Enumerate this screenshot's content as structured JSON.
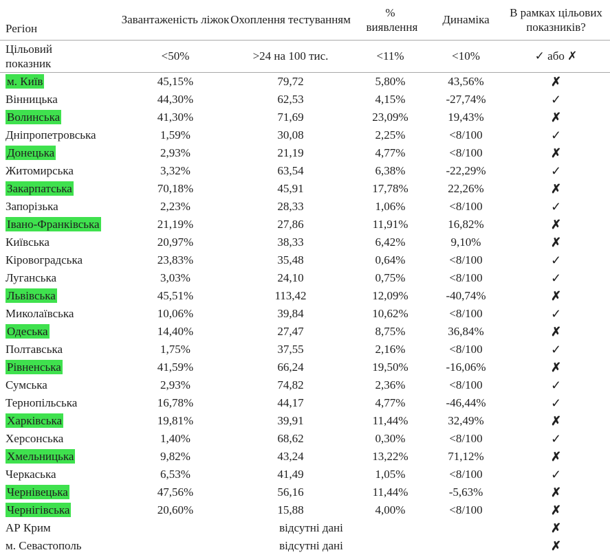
{
  "colors": {
    "highlight": "#3fe14e",
    "text": "#1f1f1f",
    "rule": "#a8a8a8"
  },
  "table": {
    "headers": [
      "Регіон",
      "Завантаженість ліжок",
      "Охоплення тестуванням",
      "% виявлення",
      "Динаміка",
      "В рамках цільових показників?"
    ],
    "target": {
      "label": "Цільовий показник",
      "values": [
        "<50%",
        ">24 на 100 тис.",
        "<11%",
        "<10%",
        "✓ або ✗"
      ]
    },
    "rows": [
      {
        "region": "м. Київ",
        "highlighted": true,
        "beds": "45,15%",
        "testing": "79,72",
        "detection": "5,80%",
        "dynamics": "43,56%",
        "status": "✗"
      },
      {
        "region": "Вінницька",
        "highlighted": false,
        "beds": "44,30%",
        "testing": "62,53",
        "detection": "4,15%",
        "dynamics": "-27,74%",
        "status": "✓"
      },
      {
        "region": "Волинська",
        "highlighted": true,
        "beds": "41,30%",
        "testing": "71,69",
        "detection": "23,09%",
        "dynamics": "19,43%",
        "status": "✗"
      },
      {
        "region": "Дніпропетровська",
        "highlighted": false,
        "beds": "1,59%",
        "testing": "30,08",
        "detection": "2,25%",
        "dynamics": "<8/100",
        "status": "✓"
      },
      {
        "region": "Донецька",
        "highlighted": true,
        "beds": "2,93%",
        "testing": "21,19",
        "detection": "4,77%",
        "dynamics": "<8/100",
        "status": "✗"
      },
      {
        "region": "Житомирська",
        "highlighted": false,
        "beds": "3,32%",
        "testing": "63,54",
        "detection": "6,38%",
        "dynamics": "-22,29%",
        "status": "✓"
      },
      {
        "region": "Закарпатська",
        "highlighted": true,
        "beds": "70,18%",
        "testing": "45,91",
        "detection": "17,78%",
        "dynamics": "22,26%",
        "status": "✗"
      },
      {
        "region": "Запорізька",
        "highlighted": false,
        "beds": "2,23%",
        "testing": "28,33",
        "detection": "1,06%",
        "dynamics": "<8/100",
        "status": "✓"
      },
      {
        "region": "Івано-Франківська",
        "highlighted": true,
        "beds": "21,19%",
        "testing": "27,86",
        "detection": "11,91%",
        "dynamics": "16,82%",
        "status": "✗"
      },
      {
        "region": "Київська",
        "highlighted": false,
        "beds": "20,97%",
        "testing": "38,33",
        "detection": "6,42%",
        "dynamics": "9,10%",
        "status": "✗"
      },
      {
        "region": "Кіровоградська",
        "highlighted": false,
        "beds": "23,83%",
        "testing": "35,48",
        "detection": "0,64%",
        "dynamics": "<8/100",
        "status": "✓"
      },
      {
        "region": "Луганська",
        "highlighted": false,
        "beds": "3,03%",
        "testing": "24,10",
        "detection": "0,75%",
        "dynamics": "<8/100",
        "status": "✓"
      },
      {
        "region": "Львівська",
        "highlighted": true,
        "beds": "45,51%",
        "testing": "113,42",
        "detection": "12,09%",
        "dynamics": "-40,74%",
        "status": "✗"
      },
      {
        "region": "Миколаївська",
        "highlighted": false,
        "beds": "10,06%",
        "testing": "39,84",
        "detection": "10,62%",
        "dynamics": "<8/100",
        "status": "✓"
      },
      {
        "region": "Одеська",
        "highlighted": true,
        "beds": "14,40%",
        "testing": "27,47",
        "detection": "8,75%",
        "dynamics": "36,84%",
        "status": "✗"
      },
      {
        "region": "Полтавська",
        "highlighted": false,
        "beds": "1,75%",
        "testing": "37,55",
        "detection": "2,16%",
        "dynamics": "<8/100",
        "status": "✓"
      },
      {
        "region": "Рівненська",
        "highlighted": true,
        "beds": "41,59%",
        "testing": "66,24",
        "detection": "19,50%",
        "dynamics": "-16,06%",
        "status": "✗"
      },
      {
        "region": "Сумська",
        "highlighted": false,
        "beds": "2,93%",
        "testing": "74,82",
        "detection": "2,36%",
        "dynamics": "<8/100",
        "status": "✓"
      },
      {
        "region": "Тернопільська",
        "highlighted": false,
        "beds": "16,78%",
        "testing": "44,17",
        "detection": "4,77%",
        "dynamics": "-46,44%",
        "status": "✓"
      },
      {
        "region": "Харківська",
        "highlighted": true,
        "beds": "19,81%",
        "testing": "39,91",
        "detection": "11,44%",
        "dynamics": "32,49%",
        "status": "✗"
      },
      {
        "region": "Херсонська",
        "highlighted": false,
        "beds": "1,40%",
        "testing": "68,62",
        "detection": "0,30%",
        "dynamics": "<8/100",
        "status": "✓"
      },
      {
        "region": "Хмельницька",
        "highlighted": true,
        "beds": "9,82%",
        "testing": "43,24",
        "detection": "13,22%",
        "dynamics": "71,12%",
        "status": "✗"
      },
      {
        "region": "Черкаська",
        "highlighted": false,
        "beds": "6,53%",
        "testing": "41,49",
        "detection": "1,05%",
        "dynamics": "<8/100",
        "status": "✓"
      },
      {
        "region": "Чернівецька",
        "highlighted": true,
        "beds": "47,56%",
        "testing": "56,16",
        "detection": "11,44%",
        "dynamics": "-5,63%",
        "status": "✗"
      },
      {
        "region": "Чернігівська",
        "highlighted": true,
        "beds": "20,60%",
        "testing": "15,88",
        "detection": "4,00%",
        "dynamics": "<8/100",
        "status": "✗"
      },
      {
        "region": "АР Крим",
        "highlighted": false,
        "note": "відсутні дані",
        "status": "✗"
      },
      {
        "region": "м. Севастополь",
        "highlighted": false,
        "note": "відсутні дані",
        "status": "✗"
      }
    ]
  }
}
